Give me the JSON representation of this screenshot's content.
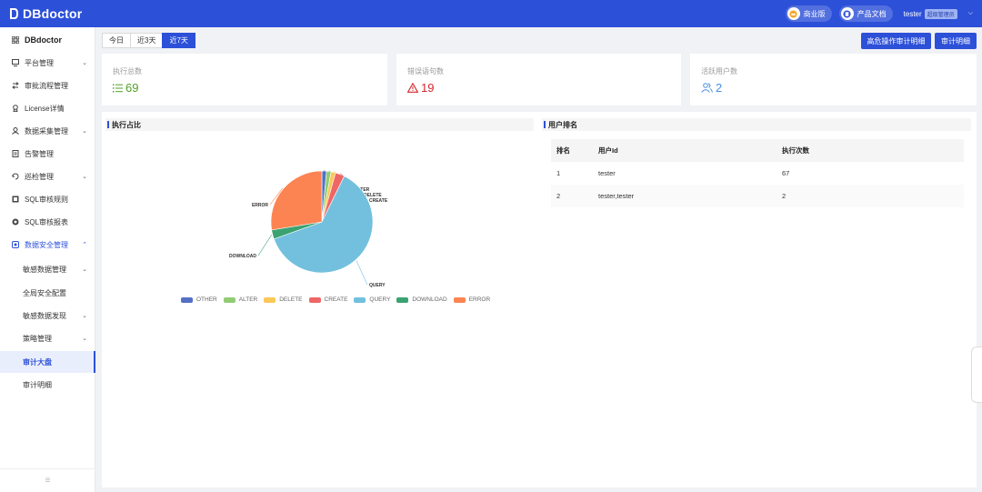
{
  "app": {
    "name": "DBdoctor"
  },
  "topbar": {
    "edition_label": "商业版",
    "docs_label": "产品文档",
    "username": "tester",
    "role": "超级管理员"
  },
  "sidebar": {
    "header": "DBdoctor",
    "items": [
      {
        "label": "平台管理",
        "icon": "monitor-icon",
        "expandable": true
      },
      {
        "label": "审批流程管理",
        "icon": "flow-icon",
        "expandable": false
      },
      {
        "label": "License详情",
        "icon": "license-icon",
        "expandable": false
      },
      {
        "label": "数据采集管理",
        "icon": "collect-icon",
        "expandable": true
      },
      {
        "label": "告警管理",
        "icon": "alarm-icon",
        "expandable": false
      },
      {
        "label": "巡检管理",
        "icon": "inspect-icon",
        "expandable": true
      },
      {
        "label": "SQL审核规则",
        "icon": "rule-icon",
        "expandable": false
      },
      {
        "label": "SQL审核报表",
        "icon": "report-icon",
        "expandable": false
      },
      {
        "label": "数据安全管理",
        "icon": "security-icon",
        "expandable": true,
        "expanded": true
      }
    ],
    "subitems": [
      {
        "label": "敏感数据管理",
        "expandable": true
      },
      {
        "label": "全局安全配置",
        "expandable": false
      },
      {
        "label": "敏感数据发现",
        "expandable": true
      },
      {
        "label": "策略管理",
        "expandable": true
      },
      {
        "label": "审计大盘",
        "expandable": false,
        "selected": true
      },
      {
        "label": "审计明细",
        "expandable": false
      }
    ]
  },
  "range_tabs": [
    "今日",
    "近3天",
    "近7天"
  ],
  "active_range": "近7天",
  "actions": {
    "high_risk_audit": "高危操作审计明细",
    "audit_detail": "审计明细"
  },
  "stats": [
    {
      "title": "执行总数",
      "value": "69",
      "icon": "list-icon",
      "color": "#52a02a"
    },
    {
      "title": "错误语句数",
      "value": "19",
      "icon": "warning-icon",
      "color": "#d6262d"
    },
    {
      "title": "活跃用户数",
      "value": "2",
      "icon": "users-icon",
      "color": "#4a90e2"
    }
  ],
  "sections": {
    "execution_ratio": "执行占比",
    "user_ranking": "用户排名"
  },
  "chart_data": {
    "type": "pie",
    "categories": [
      "OTHER",
      "ALTER",
      "DELETE",
      "CREATE",
      "QUERY",
      "DOWNLOAD",
      "ERROR"
    ],
    "values": [
      1,
      1,
      1,
      2,
      43,
      2,
      19
    ],
    "colors": [
      "#5470c6",
      "#91cc75",
      "#fac858",
      "#ee6666",
      "#73c0de",
      "#3ba272",
      "#fc8452"
    ],
    "legend": "bottom"
  },
  "ranking": {
    "headers": [
      "排名",
      "用户Id",
      "执行次数"
    ],
    "rows": [
      [
        "1",
        "tester",
        "67"
      ],
      [
        "2",
        "tester,tester",
        "2"
      ]
    ]
  }
}
